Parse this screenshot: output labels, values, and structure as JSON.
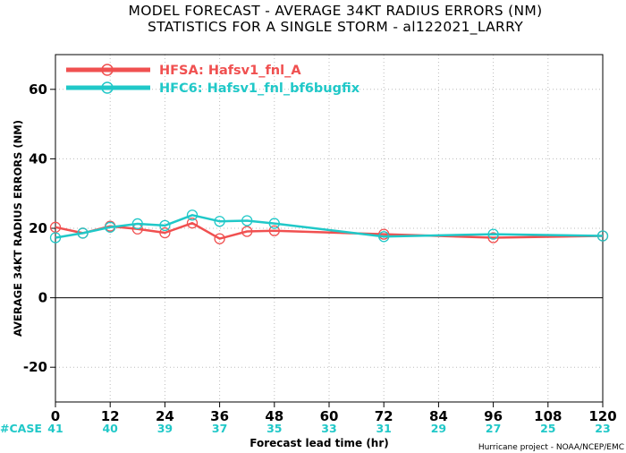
{
  "chart_data": {
    "type": "line",
    "title": "MODEL FORECAST - AVERAGE 34KT RADIUS ERRORS (NM)",
    "subtitle": "STATISTICS FOR A SINGLE STORM - al122021_LARRY",
    "xlabel": "Forecast lead time (hr)",
    "ylabel": "AVERAGE 34KT RADIUS ERRORS (NM)",
    "xlim": [
      0,
      120
    ],
    "ylim": [
      -30,
      70
    ],
    "x_ticks": [
      0,
      12,
      24,
      36,
      48,
      60,
      72,
      84,
      96,
      108,
      120
    ],
    "y_ticks": [
      -20,
      0,
      20,
      40,
      60
    ],
    "grid": "dotted",
    "legend_position": "top-left",
    "series": [
      {
        "name": "HFSA: Hafsv1_fnl_A",
        "color": "#f05050",
        "x": [
          0,
          6,
          12,
          18,
          24,
          30,
          36,
          42,
          48,
          72,
          96,
          120
        ],
        "values": [
          20.3,
          18.6,
          20.6,
          19.8,
          18.7,
          21.5,
          17.0,
          19.1,
          19.3,
          18.3,
          17.3,
          17.8
        ]
      },
      {
        "name": "HFC6: Hafsv1_fnl_bf6bugfix",
        "color": "#20c8c8",
        "x": [
          0,
          6,
          12,
          18,
          24,
          30,
          36,
          42,
          48,
          72,
          96,
          120
        ],
        "values": [
          17.3,
          18.6,
          20.3,
          21.3,
          20.8,
          23.8,
          22.0,
          22.2,
          21.4,
          17.6,
          18.3,
          17.8
        ]
      }
    ],
    "case_label": "#CASE",
    "case_label_color": "#20c8c8",
    "case_counts": [
      "41",
      "40",
      "39",
      "37",
      "35",
      "33",
      "31",
      "29",
      "27",
      "25",
      "23"
    ]
  },
  "credit": "Hurricane project - NOAA/NCEP/EMC"
}
